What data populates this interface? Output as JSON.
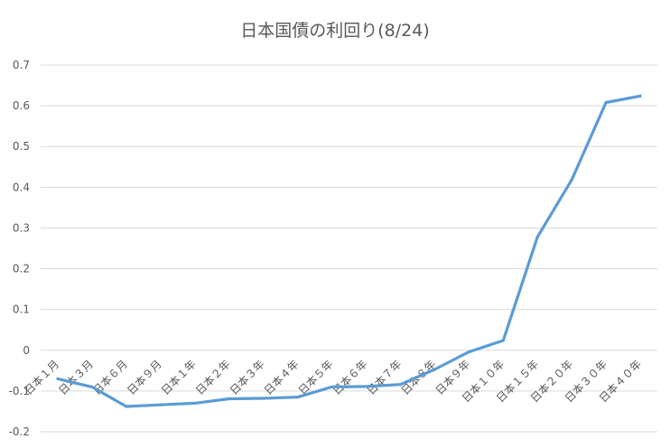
{
  "chart_data": {
    "type": "line",
    "title": "日本国債の利回り(8/24)",
    "xlabel": "",
    "ylabel": "",
    "ylim": [
      -0.2,
      0.7
    ],
    "yticks": [
      -0.2,
      -0.1,
      0,
      0.1,
      0.2,
      0.3,
      0.4,
      0.5,
      0.6,
      0.7
    ],
    "ytick_labels": [
      "-0.2",
      "-0.1",
      "0",
      "0.1",
      "0.2",
      "0.3",
      "0.4",
      "0.5",
      "0.6",
      "0.7"
    ],
    "grid": true,
    "legend": "none",
    "categories": [
      "日本１月",
      "日本３月",
      "日本６月",
      "日本９月",
      "日本１年",
      "日本２年",
      "日本３年",
      "日本４年",
      "日本５年",
      "日本６年",
      "日本７年",
      "日本８年",
      "日本９年",
      "日本１０年",
      "日本１５年",
      "日本２０年",
      "日本３０年",
      "日本４０年"
    ],
    "series": [
      {
        "color": "#5b9bd5",
        "values": [
          -0.07,
          -0.09,
          -0.138,
          -0.134,
          -0.13,
          -0.119,
          -0.118,
          -0.115,
          -0.09,
          -0.089,
          -0.084,
          -0.047,
          -0.004,
          0.024,
          0.278,
          0.418,
          0.608,
          0.624
        ]
      }
    ]
  }
}
